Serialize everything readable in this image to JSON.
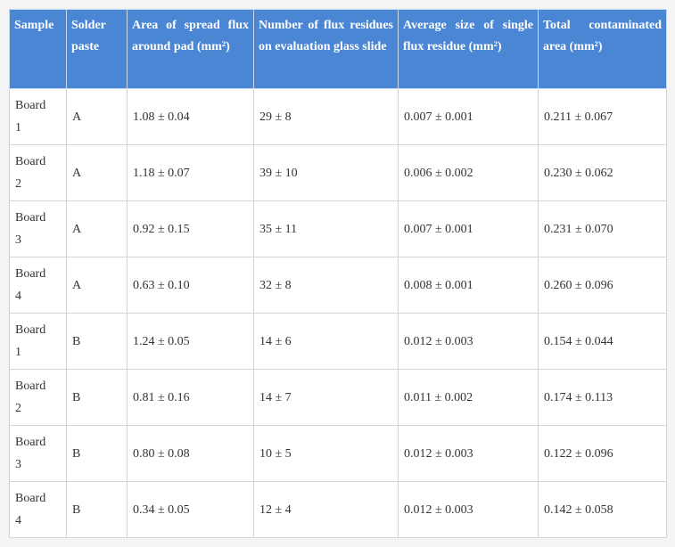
{
  "table": {
    "header": [
      "Sample",
      "Solder paste",
      "Area of spread flux around pad (mm²)",
      "Number of flux residues on evaluation glass slide",
      "Average size of single flux residue (mm²)",
      "Total contaminated area (mm²)"
    ],
    "rows": [
      [
        "Board 1",
        "A",
        "1.08 ± 0.04",
        "29 ± 8",
        "0.007 ± 0.001",
        "0.211 ± 0.067"
      ],
      [
        "Board 2",
        "A",
        "1.18 ± 0.07",
        "39 ± 10",
        "0.006 ± 0.002",
        "0.230 ± 0.062"
      ],
      [
        "Board 3",
        "A",
        "0.92 ± 0.15",
        "35 ± 11",
        "0.007 ± 0.001",
        "0.231 ± 0.070"
      ],
      [
        "Board 4",
        "A",
        "0.63 ± 0.10",
        "32 ± 8",
        "0.008 ± 0.001",
        "0.260 ± 0.096"
      ],
      [
        "Board 1",
        "B",
        "1.24 ± 0.05",
        "14 ± 6",
        "0.012 ± 0.003",
        "0.154 ± 0.044"
      ],
      [
        "Board 2",
        "B",
        "0.81 ± 0.16",
        "14 ± 7",
        "0.011 ± 0.002",
        "0.174 ± 0.113"
      ],
      [
        "Board 3",
        "B",
        "0.80 ± 0.08",
        "10 ± 5",
        "0.012 ± 0.003",
        "0.122 ± 0.096"
      ],
      [
        "Board 4",
        "B",
        "0.34 ± 0.05",
        "12 ± 4",
        "0.012 ± 0.003",
        "0.142 ± 0.058"
      ]
    ]
  }
}
